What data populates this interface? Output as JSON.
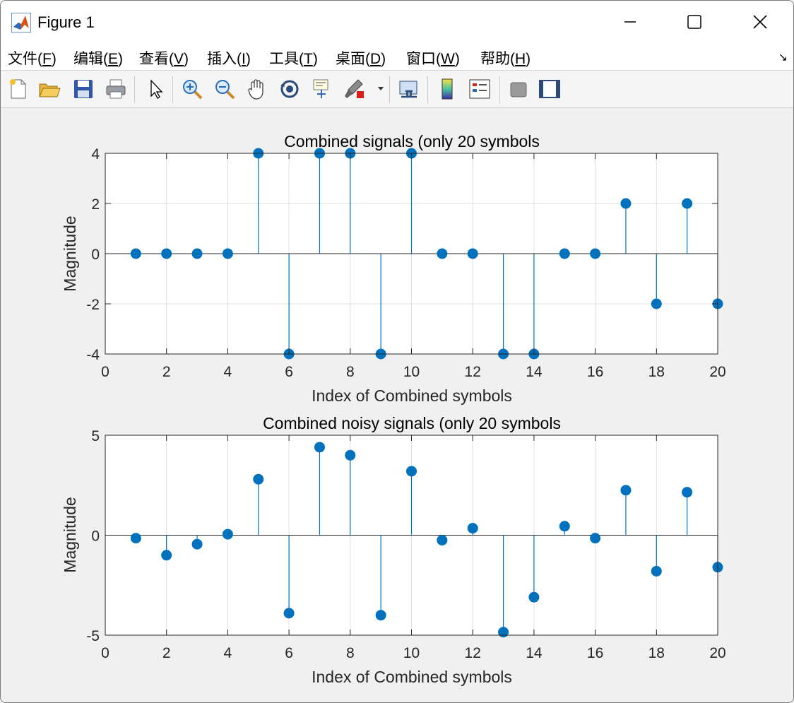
{
  "window": {
    "title": "Figure 1"
  },
  "menu": [
    {
      "pre": "文件(",
      "acc": "F",
      "post": ")"
    },
    {
      "pre": "编辑(",
      "acc": "E",
      "post": ")"
    },
    {
      "pre": "查看(",
      "acc": "V",
      "post": ")"
    },
    {
      "pre": "插入(",
      "acc": "I",
      "post": ")"
    },
    {
      "pre": "工具(",
      "acc": "T",
      "post": ")"
    },
    {
      "pre": "桌面(",
      "acc": "D",
      "post": ")"
    },
    {
      "pre": "窗口(",
      "acc": "W",
      "post": ")"
    },
    {
      "pre": "帮助(",
      "acc": "H",
      "post": ")"
    }
  ],
  "toolbar_icons": [
    "new-figure-icon",
    "open-file-icon",
    "save-icon",
    "print-icon",
    "pointer-icon",
    "zoom-in-icon",
    "zoom-out-icon",
    "pan-icon",
    "rotate-3d-icon",
    "data-cursor-icon",
    "brush-icon",
    "link-plot-icon",
    "colorbar-icon",
    "legend-icon",
    "hide-plot-tools-icon",
    "show-plot-tools-icon"
  ],
  "colors": {
    "stem": "#0072bd",
    "axis": "#262626",
    "grid": "#dfdfdf"
  },
  "chart_data": [
    {
      "type": "stem",
      "title": "Combined signals (only 20 symbols",
      "xlabel": "Index of Combined symbols",
      "ylabel": "Magnitude",
      "xlim": [
        0,
        20
      ],
      "ylim": [
        -4,
        4
      ],
      "xticks": [
        0,
        2,
        4,
        6,
        8,
        10,
        12,
        14,
        16,
        18,
        20
      ],
      "yticks": [
        -4,
        -2,
        0,
        2,
        4
      ],
      "grid": true,
      "x": [
        1,
        2,
        3,
        4,
        5,
        6,
        7,
        8,
        9,
        10,
        11,
        12,
        13,
        14,
        15,
        16,
        17,
        18,
        19,
        20
      ],
      "y": [
        0,
        0,
        0,
        0,
        4,
        -4,
        4,
        4,
        -4,
        4,
        0,
        0,
        -4,
        -4,
        0,
        0,
        2,
        -2,
        2,
        -2
      ]
    },
    {
      "type": "stem",
      "title": "Combined noisy signals (only 20 symbols",
      "xlabel": "Index of Combined symbols",
      "ylabel": "Magnitude",
      "xlim": [
        0,
        20
      ],
      "ylim": [
        -5,
        5
      ],
      "xticks": [
        0,
        2,
        4,
        6,
        8,
        10,
        12,
        14,
        16,
        18,
        20
      ],
      "yticks": [
        -5,
        0,
        5
      ],
      "grid": true,
      "x": [
        1,
        2,
        3,
        4,
        5,
        6,
        7,
        8,
        9,
        10,
        11,
        12,
        13,
        14,
        15,
        16,
        17,
        18,
        19,
        20
      ],
      "y": [
        -0.15,
        -1.0,
        -0.45,
        0.05,
        2.8,
        -3.9,
        4.4,
        4.0,
        -4.0,
        3.2,
        -0.25,
        0.35,
        -4.85,
        -3.1,
        0.45,
        -0.15,
        2.25,
        -1.8,
        2.15,
        -1.6
      ]
    }
  ]
}
